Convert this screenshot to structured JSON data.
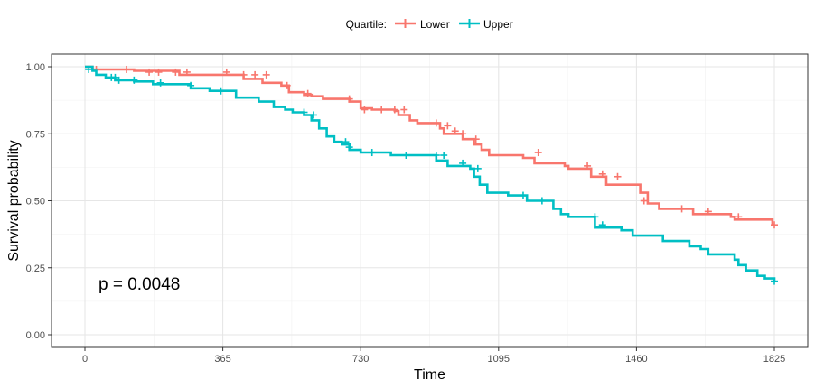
{
  "chart_data": {
    "type": "line",
    "subtype": "kaplan-meier step",
    "xlabel": "Time",
    "ylabel": "Survival probability",
    "xlim": [
      0,
      1825
    ],
    "ylim": [
      0,
      1
    ],
    "x_ticks": [
      0,
      365,
      730,
      1095,
      1460,
      1825
    ],
    "x_tick_labels": [
      "0",
      "365",
      "730",
      "1095",
      "1460",
      "1825"
    ],
    "y_ticks": [
      0,
      0.25,
      0.5,
      0.75,
      1
    ],
    "y_tick_labels": [
      "0.00",
      "0.25",
      "0.50",
      "0.75",
      "1.00"
    ],
    "grid": true,
    "legend": {
      "title": "Quartile:",
      "position": "top",
      "entries": [
        "Lower",
        "Upper"
      ]
    },
    "annotation": "p = 0.0048",
    "series": [
      {
        "name": "Lower",
        "color": "#F8766D",
        "steps": [
          [
            0,
            1.0
          ],
          [
            20,
            0.99
          ],
          [
            130,
            0.985
          ],
          [
            250,
            0.97
          ],
          [
            330,
            0.97
          ],
          [
            420,
            0.955
          ],
          [
            470,
            0.94
          ],
          [
            520,
            0.93
          ],
          [
            540,
            0.905
          ],
          [
            580,
            0.895
          ],
          [
            600,
            0.89
          ],
          [
            630,
            0.88
          ],
          [
            700,
            0.87
          ],
          [
            730,
            0.845
          ],
          [
            760,
            0.84
          ],
          [
            820,
            0.835
          ],
          [
            830,
            0.82
          ],
          [
            860,
            0.8
          ],
          [
            880,
            0.79
          ],
          [
            940,
            0.77
          ],
          [
            950,
            0.75
          ],
          [
            1000,
            0.73
          ],
          [
            1030,
            0.71
          ],
          [
            1050,
            0.69
          ],
          [
            1070,
            0.67
          ],
          [
            1160,
            0.66
          ],
          [
            1190,
            0.64
          ],
          [
            1270,
            0.63
          ],
          [
            1280,
            0.62
          ],
          [
            1340,
            0.59
          ],
          [
            1380,
            0.56
          ],
          [
            1470,
            0.53
          ],
          [
            1490,
            0.49
          ],
          [
            1520,
            0.47
          ],
          [
            1610,
            0.45
          ],
          [
            1710,
            0.44
          ],
          [
            1720,
            0.43
          ],
          [
            1820,
            0.41
          ],
          [
            1825,
            0.41
          ]
        ],
        "censors": [
          [
            30,
            0.99
          ],
          [
            110,
            0.99
          ],
          [
            170,
            0.98
          ],
          [
            195,
            0.98
          ],
          [
            240,
            0.98
          ],
          [
            270,
            0.98
          ],
          [
            375,
            0.98
          ],
          [
            420,
            0.97
          ],
          [
            450,
            0.97
          ],
          [
            480,
            0.97
          ],
          [
            535,
            0.93
          ],
          [
            590,
            0.9
          ],
          [
            700,
            0.88
          ],
          [
            740,
            0.84
          ],
          [
            785,
            0.84
          ],
          [
            820,
            0.84
          ],
          [
            845,
            0.84
          ],
          [
            930,
            0.79
          ],
          [
            960,
            0.78
          ],
          [
            980,
            0.76
          ],
          [
            1000,
            0.75
          ],
          [
            1035,
            0.73
          ],
          [
            1200,
            0.68
          ],
          [
            1330,
            0.63
          ],
          [
            1370,
            0.6
          ],
          [
            1410,
            0.59
          ],
          [
            1480,
            0.5
          ],
          [
            1580,
            0.47
          ],
          [
            1650,
            0.46
          ],
          [
            1730,
            0.44
          ],
          [
            1825,
            0.41
          ]
        ]
      },
      {
        "name": "Upper",
        "color": "#00BFC4",
        "steps": [
          [
            0,
            1.0
          ],
          [
            20,
            0.985
          ],
          [
            30,
            0.97
          ],
          [
            55,
            0.96
          ],
          [
            80,
            0.95
          ],
          [
            130,
            0.945
          ],
          [
            180,
            0.935
          ],
          [
            280,
            0.92
          ],
          [
            330,
            0.91
          ],
          [
            400,
            0.885
          ],
          [
            460,
            0.87
          ],
          [
            500,
            0.85
          ],
          [
            530,
            0.84
          ],
          [
            550,
            0.83
          ],
          [
            580,
            0.82
          ],
          [
            600,
            0.8
          ],
          [
            620,
            0.77
          ],
          [
            640,
            0.74
          ],
          [
            660,
            0.72
          ],
          [
            680,
            0.71
          ],
          [
            700,
            0.69
          ],
          [
            730,
            0.68
          ],
          [
            810,
            0.67
          ],
          [
            930,
            0.65
          ],
          [
            960,
            0.63
          ],
          [
            1020,
            0.62
          ],
          [
            1030,
            0.59
          ],
          [
            1045,
            0.56
          ],
          [
            1065,
            0.53
          ],
          [
            1120,
            0.52
          ],
          [
            1170,
            0.5
          ],
          [
            1240,
            0.47
          ],
          [
            1260,
            0.45
          ],
          [
            1280,
            0.44
          ],
          [
            1350,
            0.4
          ],
          [
            1420,
            0.39
          ],
          [
            1450,
            0.37
          ],
          [
            1530,
            0.35
          ],
          [
            1600,
            0.33
          ],
          [
            1630,
            0.32
          ],
          [
            1650,
            0.3
          ],
          [
            1720,
            0.28
          ],
          [
            1730,
            0.26
          ],
          [
            1750,
            0.24
          ],
          [
            1780,
            0.22
          ],
          [
            1800,
            0.21
          ],
          [
            1825,
            0.2
          ]
        ],
        "censors": [
          [
            10,
            0.99
          ],
          [
            70,
            0.96
          ],
          [
            80,
            0.96
          ],
          [
            90,
            0.95
          ],
          [
            130,
            0.95
          ],
          [
            200,
            0.94
          ],
          [
            280,
            0.93
          ],
          [
            360,
            0.91
          ],
          [
            580,
            0.83
          ],
          [
            605,
            0.82
          ],
          [
            690,
            0.72
          ],
          [
            700,
            0.7
          ],
          [
            760,
            0.68
          ],
          [
            850,
            0.67
          ],
          [
            930,
            0.67
          ],
          [
            950,
            0.67
          ],
          [
            1000,
            0.64
          ],
          [
            1040,
            0.62
          ],
          [
            1160,
            0.52
          ],
          [
            1210,
            0.5
          ],
          [
            1350,
            0.44
          ],
          [
            1370,
            0.41
          ],
          [
            1825,
            0.2
          ]
        ]
      }
    ]
  }
}
